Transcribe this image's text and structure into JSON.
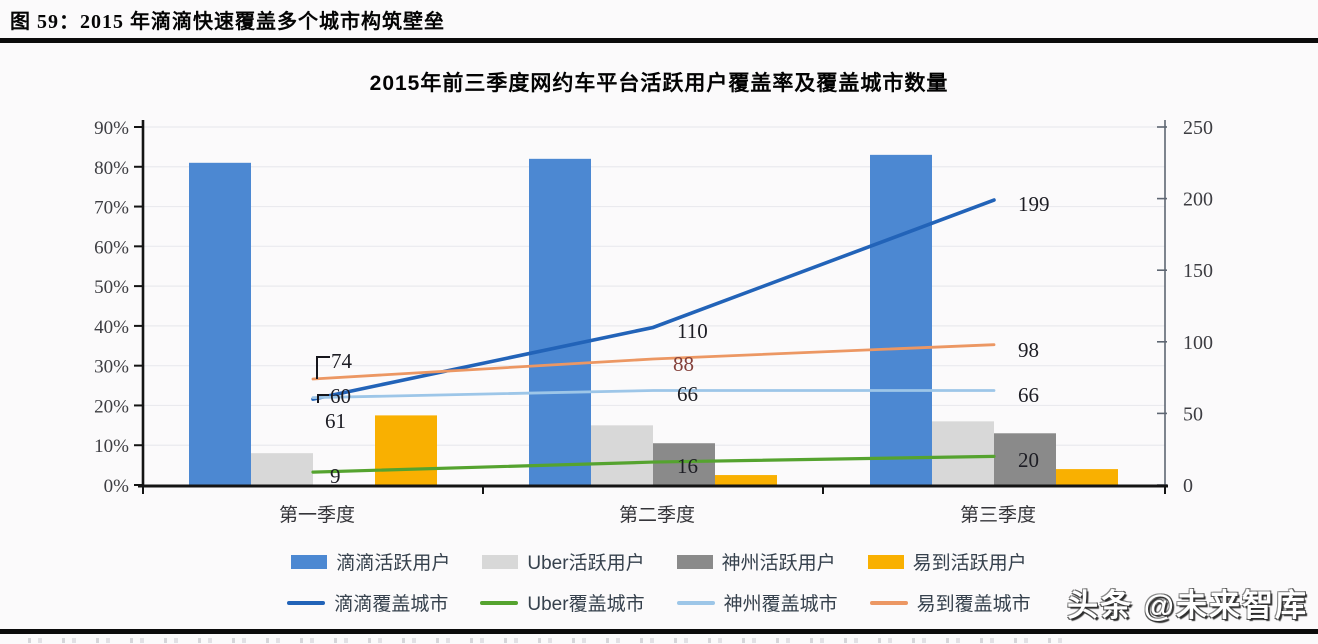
{
  "header": {
    "title": "图 59：2015 年滴滴快速覆盖多个城市构筑壁垒"
  },
  "watermark": {
    "text": "头条 @未来智库"
  },
  "chart_data": {
    "type": "bar",
    "subtype": "combo-bar-line-dual-axis",
    "title": "2015年前三季度网约车平台活跃用户覆盖率及覆盖城市数量",
    "categories": [
      "第一季度",
      "第二季度",
      "第三季度"
    ],
    "left_axis": {
      "label": "活跃用户覆盖率",
      "ticks": [
        "90%",
        "80%",
        "70%",
        "60%",
        "50%",
        "40%",
        "30%",
        "20%",
        "10%",
        "0%"
      ],
      "min": 0,
      "max": 90,
      "unit": "%"
    },
    "right_axis": {
      "label": "覆盖城市数量",
      "ticks": [
        "250",
        "200",
        "150",
        "100",
        "50",
        "0"
      ],
      "min": 0,
      "max": 250
    },
    "grid": "horizontal",
    "legend_position": "bottom-two-rows",
    "bar_series": [
      {
        "name": "滴滴活跃用户",
        "color": "#4C88D2",
        "values_pct": [
          81,
          82,
          83
        ]
      },
      {
        "name": "Uber活跃用户",
        "color": "#D8D8D8",
        "values_pct": [
          8,
          15,
          16
        ]
      },
      {
        "name": "神州活跃用户",
        "color": "#8A8A8A",
        "values_pct": [
          0,
          10.5,
          13
        ]
      },
      {
        "name": "易到活跃用户",
        "color": "#F9B001",
        "values_pct": [
          17.5,
          2.5,
          4
        ]
      }
    ],
    "line_series": [
      {
        "name": "滴滴覆盖城市",
        "color": "#2263B8",
        "width": 3.6,
        "values": [
          60,
          110,
          199
        ]
      },
      {
        "name": "Uber覆盖城市",
        "color": "#55A32F",
        "width": 3.2,
        "values": [
          9,
          16,
          20
        ]
      },
      {
        "name": "神州覆盖城市",
        "color": "#9DC6E8",
        "width": 2.8,
        "values": [
          61,
          66,
          66
        ]
      },
      {
        "name": "易到覆盖城市",
        "color": "#EC9763",
        "width": 2.8,
        "values": [
          74,
          88,
          98
        ]
      }
    ]
  }
}
